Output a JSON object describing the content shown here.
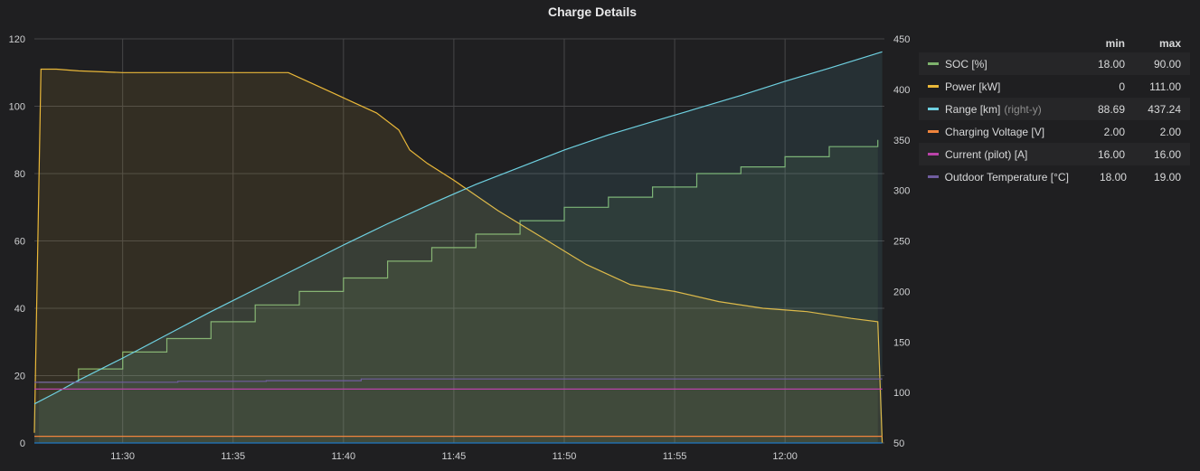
{
  "panel": {
    "title": "Charge Details"
  },
  "legend": {
    "header": {
      "min": "min",
      "max": "max"
    },
    "items": [
      {
        "name": "SOC [%]",
        "suffix": "",
        "color": "#7eb26d",
        "min": "18.00",
        "max": "90.00"
      },
      {
        "name": "Power [kW]",
        "suffix": "",
        "color": "#eab839",
        "min": "0",
        "max": "111.00"
      },
      {
        "name": "Range [km]",
        "suffix": "(right-y)",
        "color": "#6ed0e0",
        "min": "88.69",
        "max": "437.24"
      },
      {
        "name": "Charging Voltage [V]",
        "suffix": "",
        "color": "#ef843c",
        "min": "2.00",
        "max": "2.00"
      },
      {
        "name": "Current (pilot) [A]",
        "suffix": "",
        "color": "#ba43a9",
        "min": "16.00",
        "max": "16.00"
      },
      {
        "name": "Outdoor Temperature [°C]",
        "suffix": "",
        "color": "#705da0",
        "min": "18.00",
        "max": "19.00"
      }
    ]
  },
  "chart_data": {
    "type": "line",
    "title": "Charge Details",
    "x_ticks": [
      "11:30",
      "11:35",
      "11:40",
      "11:45",
      "11:50",
      "11:55",
      "12:00"
    ],
    "x_tick_minutes": [
      30,
      35,
      40,
      45,
      50,
      55,
      60
    ],
    "x_range_minutes": [
      26,
      64.5
    ],
    "y_left": {
      "ticks": [
        0,
        20,
        40,
        60,
        80,
        100,
        120
      ],
      "range": [
        0,
        120
      ]
    },
    "y_right": {
      "ticks": [
        50,
        100,
        150,
        200,
        250,
        300,
        350,
        400,
        450
      ],
      "range": [
        50,
        450
      ]
    },
    "grid": true,
    "legend_position": "right",
    "series": [
      {
        "name": "SOC [%]",
        "axis": "left",
        "color": "#7eb26d",
        "fill": true,
        "step": true,
        "x": [
          26.2,
          28,
          30,
          32,
          34,
          36,
          38,
          40,
          42,
          44,
          46,
          48,
          50,
          52,
          54,
          56,
          58,
          60,
          62,
          64.2
        ],
        "y": [
          18,
          22,
          27,
          31,
          36,
          41,
          45,
          49,
          54,
          58,
          62,
          66,
          70,
          73,
          76,
          80,
          82,
          85,
          88,
          90
        ]
      },
      {
        "name": "Power [kW]",
        "axis": "left",
        "color": "#eab839",
        "fill": true,
        "step": false,
        "x": [
          26,
          26.3,
          27,
          28,
          30,
          35,
          37.5,
          38.5,
          39.5,
          40.5,
          41.5,
          42.5,
          43,
          43.8,
          45,
          47,
          49,
          51,
          53,
          55,
          57,
          59,
          61,
          63,
          64.2,
          64.4
        ],
        "y": [
          3,
          111,
          111,
          110.5,
          110,
          110,
          110,
          107,
          104,
          101,
          98,
          93,
          87,
          83,
          78,
          69,
          61,
          53,
          47,
          45,
          42,
          40,
          39,
          37,
          36,
          0
        ]
      },
      {
        "name": "Range [km]",
        "axis": "right",
        "color": "#6ed0e0",
        "fill": true,
        "step": false,
        "x": [
          26,
          27,
          28,
          30,
          32,
          34,
          36,
          38,
          40,
          42,
          44,
          46,
          48,
          50,
          52,
          54,
          56,
          58,
          60,
          62,
          64.4
        ],
        "y": [
          88.69,
          100,
          112,
          134,
          157,
          180,
          202,
          224,
          246,
          267,
          287,
          306,
          323,
          340,
          355,
          368,
          381,
          394,
          408,
          421,
          437.24
        ]
      },
      {
        "name": "Charging Voltage [V]",
        "axis": "left",
        "color": "#ef843c",
        "fill": false,
        "step": false,
        "x": [
          26,
          64.4
        ],
        "y": [
          2,
          2
        ]
      },
      {
        "name": "Current (pilot) [A]",
        "axis": "left",
        "color": "#ba43a9",
        "fill": false,
        "step": false,
        "x": [
          26,
          64.4
        ],
        "y": [
          16,
          16
        ]
      },
      {
        "name": "Outdoor Temperature [°C]",
        "axis": "left",
        "color": "#705da0",
        "fill": false,
        "step": true,
        "x": [
          26,
          28.5,
          32.5,
          36.5,
          40.8,
          64.4
        ],
        "y": [
          18,
          18.05,
          18.3,
          18.5,
          19,
          19
        ]
      },
      {
        "name": "",
        "axis": "left",
        "color": "#1f78c1",
        "fill": false,
        "step": false,
        "x": [
          26,
          64.4
        ],
        "y": [
          0,
          0
        ]
      }
    ]
  }
}
